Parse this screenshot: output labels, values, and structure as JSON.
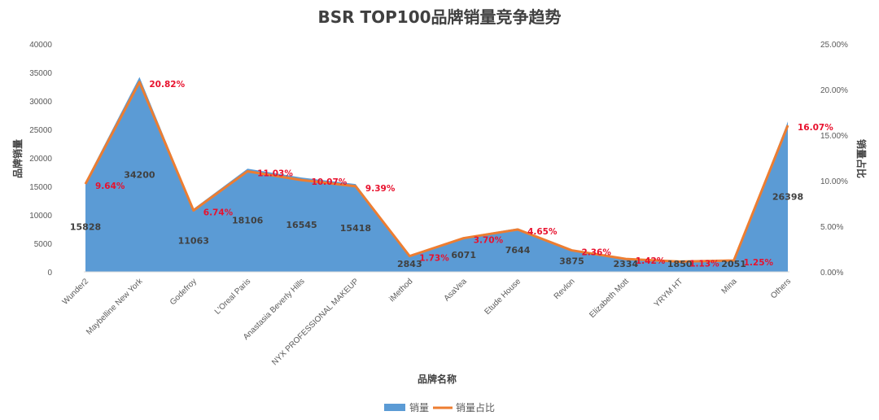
{
  "chart_data": {
    "type": "area",
    "title": "BSR TOP100品牌销量竞争趋势",
    "xlabel": "品牌名称",
    "ylabel": "品牌销量",
    "y2label": "销量占比",
    "categories": [
      "Wunder2",
      "Maybelline New York",
      "Godefroy",
      "L'Oreal Paris",
      "Anastasia Beverly Hills",
      "NYX PROFESSIONAL MAKEUP",
      "iMethod",
      "AsaVea",
      "Etude House",
      "Revlon",
      "Elizabeth Mott",
      "YRYM HT",
      "Mina",
      "Others"
    ],
    "series": [
      {
        "name": "销量",
        "type": "area",
        "axis": "left",
        "color": "#5b9bd5",
        "values": [
          15828,
          34200,
          11063,
          18106,
          16545,
          15418,
          2843,
          6071,
          7644,
          3875,
          2334,
          1850,
          2051,
          26398
        ],
        "labels": [
          "15828",
          "34200",
          "11063",
          "18106",
          "16545",
          "15418",
          "2843",
          "6071",
          "7644",
          "3875",
          "2334",
          "1850",
          "2051",
          "26398"
        ]
      },
      {
        "name": "销量占比",
        "type": "line",
        "axis": "right",
        "color": "#ed7d31",
        "values": [
          9.64,
          20.82,
          6.74,
          11.03,
          10.07,
          9.39,
          1.73,
          3.7,
          4.65,
          2.36,
          1.42,
          1.13,
          1.25,
          16.07
        ],
        "labels": [
          "9.64%",
          "20.82%",
          "6.74%",
          "11.03%",
          "10.07%",
          "9.39%",
          "1.73%",
          "3.70%",
          "4.65%",
          "2.36%",
          "1.42%",
          "1.13%",
          "1.25%",
          "16.07%"
        ]
      }
    ],
    "ylim": [
      0,
      40000
    ],
    "y2lim": [
      0,
      25
    ],
    "yticks": [
      "0",
      "5000",
      "10000",
      "15000",
      "20000",
      "25000",
      "30000",
      "35000",
      "40000"
    ],
    "y2ticks": [
      "0.00%",
      "5.00%",
      "10.00%",
      "15.00%",
      "20.00%",
      "25.00%"
    ],
    "grid": false,
    "legend_position": "bottom",
    "label_color": "#e8112d"
  }
}
